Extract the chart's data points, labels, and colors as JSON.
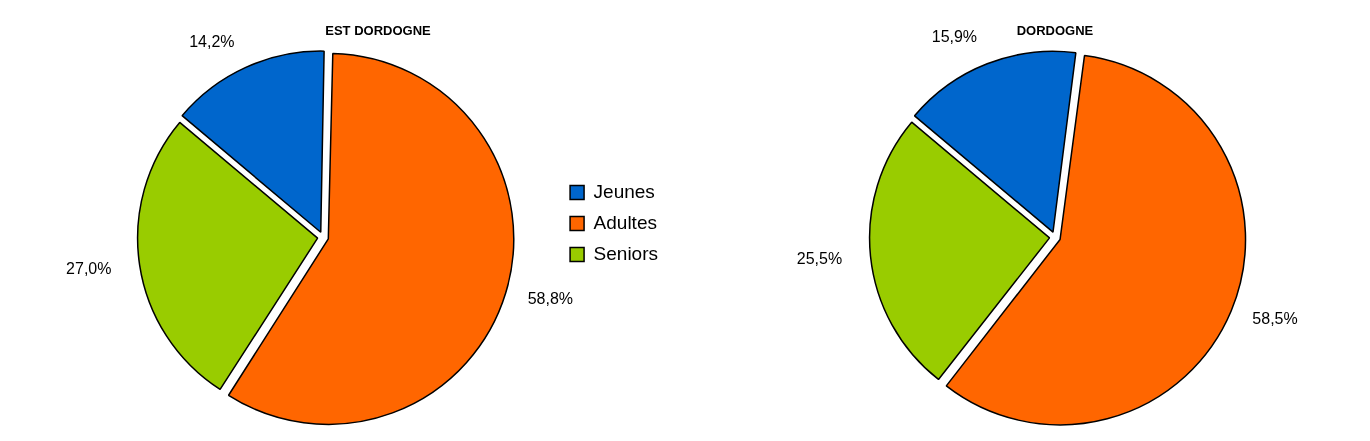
{
  "chart_data": [
    {
      "type": "pie",
      "title": "EST DORDOGNE",
      "categories": [
        "Jeunes",
        "Adultes",
        "Seniors"
      ],
      "values": [
        14.2,
        58.8,
        27.0
      ],
      "value_labels": [
        "14,2%",
        "58,8%",
        "27,0%"
      ],
      "colors": [
        "#0066cc",
        "#ff6600",
        "#99cc00"
      ],
      "legend": "right"
    },
    {
      "type": "pie",
      "title": "DORDOGNE",
      "categories": [
        null,
        null,
        null
      ],
      "values": [
        15.9,
        58.5,
        25.5
      ],
      "value_labels": [
        "15,9%",
        "58,5%",
        "25,5%"
      ],
      "colors": [
        "#0066cc",
        "#ff6600",
        "#99cc00"
      ]
    }
  ]
}
